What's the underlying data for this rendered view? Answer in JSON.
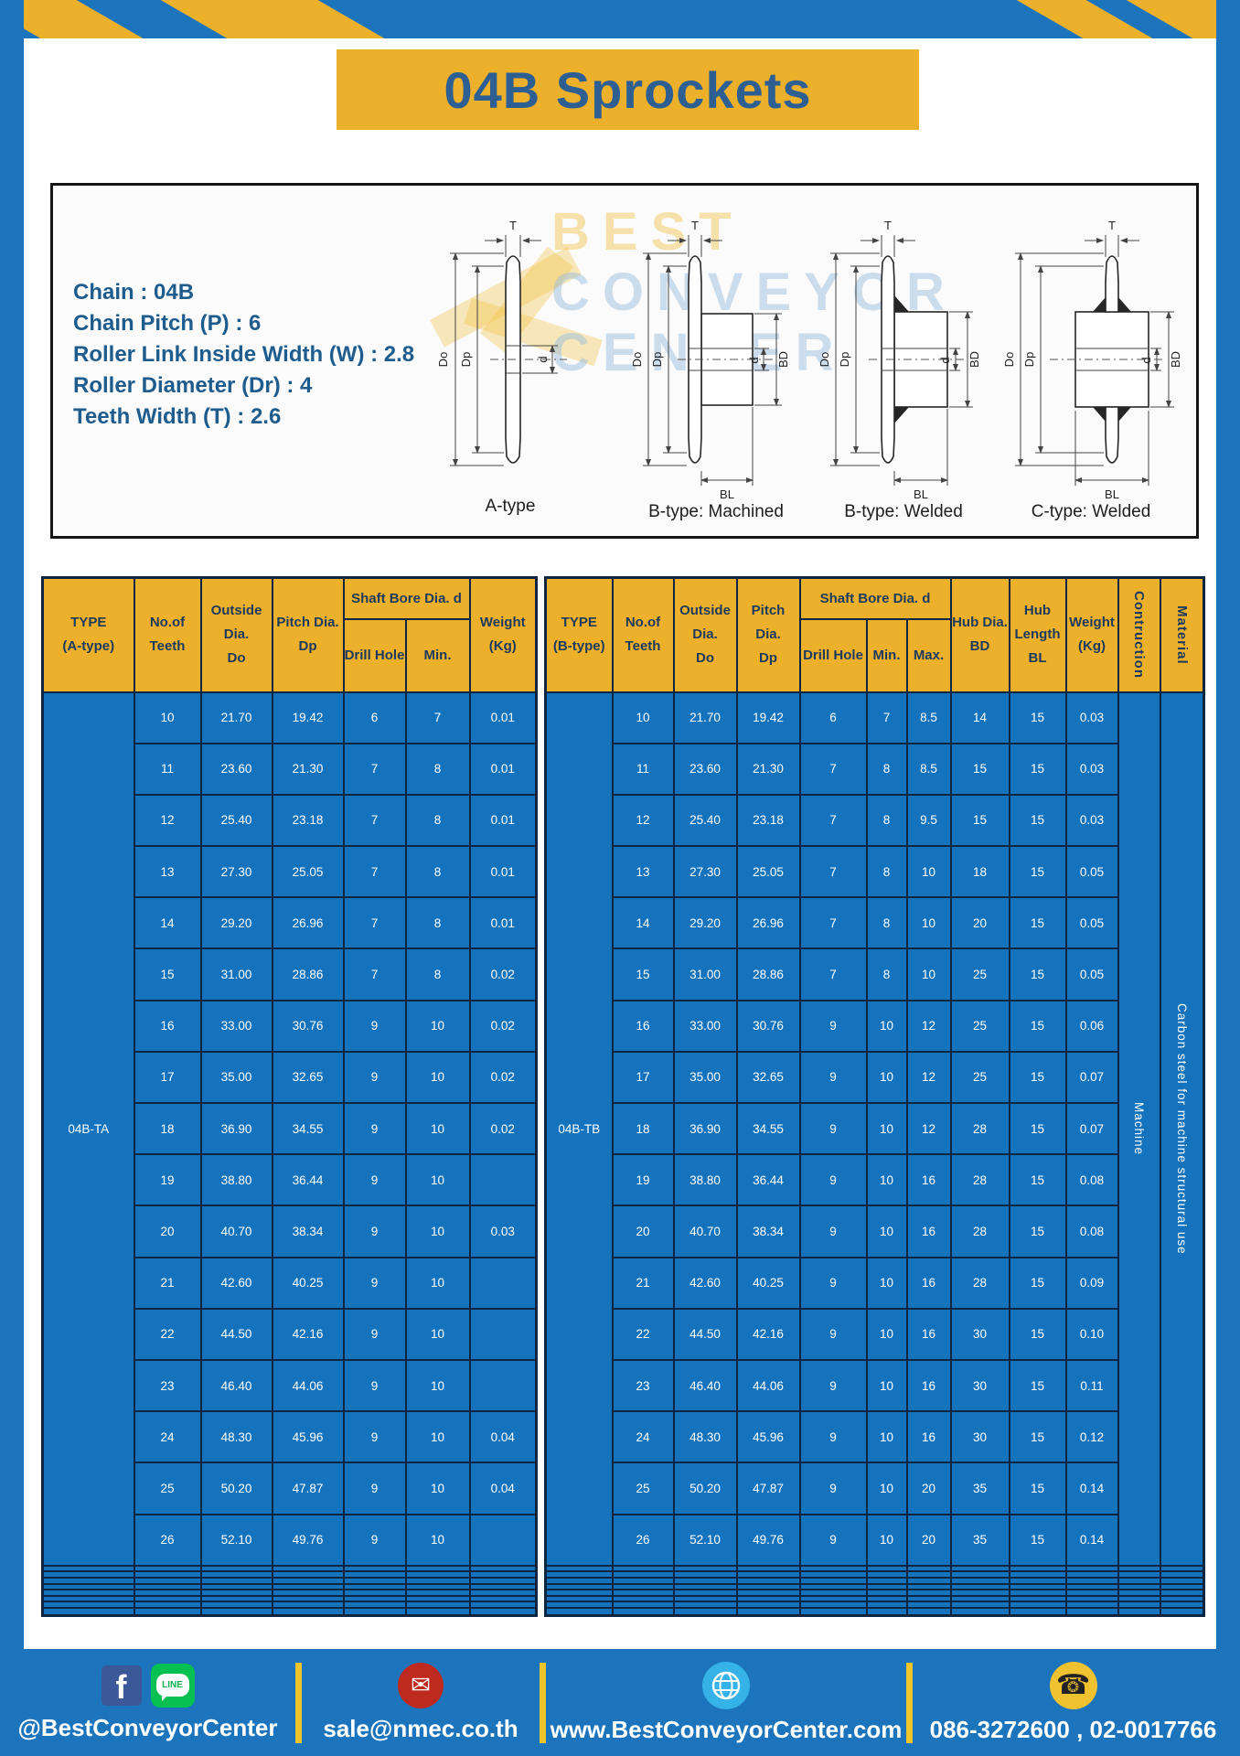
{
  "colors": {
    "frame_blue": "#1b74bc",
    "cell_blue": "#1573bd",
    "accent_yellow": "#edb02a",
    "title_text": "#2e5f92",
    "grid_line": "#0c2642"
  },
  "header": {
    "title": "04B Sprockets"
  },
  "specs": {
    "lines": [
      "Chain : 04B",
      "Chain Pitch (P) : 6",
      "Roller Link Inside Width (W) : 2.8",
      "Roller Diameter (Dr) : 4",
      "Teeth Width (T) : 2.6"
    ]
  },
  "diagram": {
    "dims": {
      "t": "T",
      "outside": "Do",
      "pitch": "Dp",
      "bore": "d",
      "hub": "BD",
      "hub_len": "BL"
    },
    "captions": {
      "a": "A-type",
      "b1": "B-type: Machined",
      "b2": "B-type: Welded",
      "c": "C-type: Welded"
    },
    "watermark": {
      "line1": "BEST",
      "line2": "CONVEYOR",
      "line3": "CENTER"
    }
  },
  "table_a": {
    "headers": {
      "type": "TYPE\n(A-type)",
      "teeth": "No.of\nTeeth",
      "outside": "Outside\nDia.\nDo",
      "pitch": "Pitch Dia.\nDp",
      "shaft_group": "Shaft Bore Dia. d",
      "drill": "Drill Hole",
      "min": "Min.",
      "weight": "Weight\n(Kg)"
    },
    "type_value": "04B-TA",
    "rows": [
      [
        "10",
        "21.70",
        "19.42",
        "6",
        "7",
        "0.01"
      ],
      [
        "11",
        "23.60",
        "21.30",
        "7",
        "8",
        "0.01"
      ],
      [
        "12",
        "25.40",
        "23.18",
        "7",
        "8",
        "0.01"
      ],
      [
        "13",
        "27.30",
        "25.05",
        "7",
        "8",
        "0.01"
      ],
      [
        "14",
        "29.20",
        "26.96",
        "7",
        "8",
        "0.01"
      ],
      [
        "15",
        "31.00",
        "28.86",
        "7",
        "8",
        "0.02"
      ],
      [
        "16",
        "33.00",
        "30.76",
        "9",
        "10",
        "0.02"
      ],
      [
        "17",
        "35.00",
        "32.65",
        "9",
        "10",
        "0.02"
      ],
      [
        "18",
        "36.90",
        "34.55",
        "9",
        "10",
        "0.02"
      ],
      [
        "19",
        "38.80",
        "36.44",
        "9",
        "10",
        ""
      ],
      [
        "20",
        "40.70",
        "38.34",
        "9",
        "10",
        "0.03"
      ],
      [
        "21",
        "42.60",
        "40.25",
        "9",
        "10",
        ""
      ],
      [
        "22",
        "44.50",
        "42.16",
        "9",
        "10",
        ""
      ],
      [
        "23",
        "46.40",
        "44.06",
        "9",
        "10",
        ""
      ],
      [
        "24",
        "48.30",
        "45.96",
        "9",
        "10",
        "0.04"
      ],
      [
        "25",
        "50.20",
        "47.87",
        "9",
        "10",
        "0.04"
      ],
      [
        "26",
        "52.10",
        "49.76",
        "9",
        "10",
        ""
      ]
    ],
    "empty_row_count": 8
  },
  "table_b": {
    "headers": {
      "type": "TYPE\n(B-type)",
      "teeth": "No.of\nTeeth",
      "outside": "Outside\nDia.\nDo",
      "pitch": "Pitch Dia.\nDp",
      "shaft_group": "Shaft Bore Dia. d",
      "drill": "Drill Hole",
      "min": "Min.",
      "max": "Max.",
      "hub_dia": "Hub Dia.\nBD",
      "hub_len": "Hub\nLength\nBL",
      "weight": "Weight\n(Kg)",
      "construction": "Contruction",
      "material": "Material"
    },
    "type_value": "04B-TB",
    "construction_value": "Machine",
    "material_value": "Carbon steel for machine structural use",
    "rows": [
      [
        "10",
        "21.70",
        "19.42",
        "6",
        "7",
        "8.5",
        "14",
        "15",
        "0.03"
      ],
      [
        "11",
        "23.60",
        "21.30",
        "7",
        "8",
        "8.5",
        "15",
        "15",
        "0.03"
      ],
      [
        "12",
        "25.40",
        "23.18",
        "7",
        "8",
        "9.5",
        "15",
        "15",
        "0.03"
      ],
      [
        "13",
        "27.30",
        "25.05",
        "7",
        "8",
        "10",
        "18",
        "15",
        "0.05"
      ],
      [
        "14",
        "29.20",
        "26.96",
        "7",
        "8",
        "10",
        "20",
        "15",
        "0.05"
      ],
      [
        "15",
        "31.00",
        "28.86",
        "7",
        "8",
        "10",
        "25",
        "15",
        "0.05"
      ],
      [
        "16",
        "33.00",
        "30.76",
        "9",
        "10",
        "12",
        "25",
        "15",
        "0.06"
      ],
      [
        "17",
        "35.00",
        "32.65",
        "9",
        "10",
        "12",
        "25",
        "15",
        "0.07"
      ],
      [
        "18",
        "36.90",
        "34.55",
        "9",
        "10",
        "12",
        "28",
        "15",
        "0.07"
      ],
      [
        "19",
        "38.80",
        "36.44",
        "9",
        "10",
        "16",
        "28",
        "15",
        "0.08"
      ],
      [
        "20",
        "40.70",
        "38.34",
        "9",
        "10",
        "16",
        "28",
        "15",
        "0.08"
      ],
      [
        "21",
        "42.60",
        "40.25",
        "9",
        "10",
        "16",
        "28",
        "15",
        "0.09"
      ],
      [
        "22",
        "44.50",
        "42.16",
        "9",
        "10",
        "16",
        "30",
        "15",
        "0.10"
      ],
      [
        "23",
        "46.40",
        "44.06",
        "9",
        "10",
        "16",
        "30",
        "15",
        "0.11"
      ],
      [
        "24",
        "48.30",
        "45.96",
        "9",
        "10",
        "16",
        "30",
        "15",
        "0.12"
      ],
      [
        "25",
        "50.20",
        "47.87",
        "9",
        "10",
        "20",
        "35",
        "15",
        "0.14"
      ],
      [
        "26",
        "52.10",
        "49.76",
        "9",
        "10",
        "20",
        "35",
        "15",
        "0.14"
      ]
    ],
    "empty_row_count": 8
  },
  "footer": {
    "line_label": "LINE",
    "social_handle": "@BestConveyorCenter",
    "email": "sale@nmec.co.th",
    "website": "www.BestConveyorCenter.com",
    "phones": "086-3272600 , 02-0017766",
    "mail_glyph": "✉",
    "phone_glyph": "☎",
    "fb_glyph": "f"
  }
}
